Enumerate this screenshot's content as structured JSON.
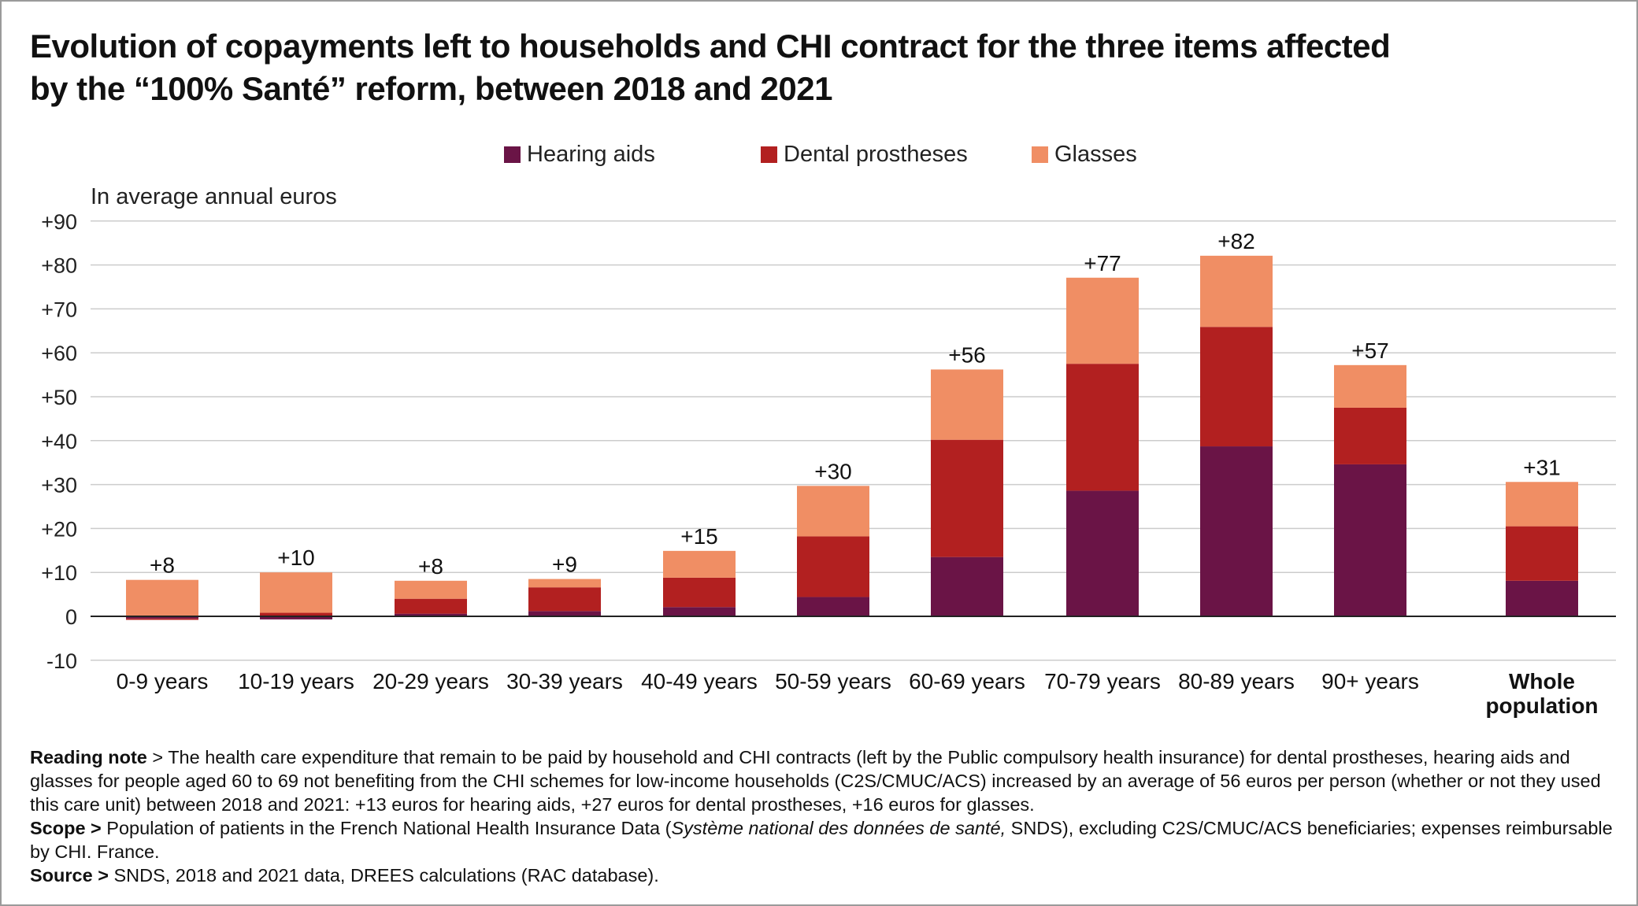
{
  "title_lines": [
    "Evolution of copayments left to households and CHI contract for the three items affected",
    "by the “100% Santé” reform, between 2018 and 2021"
  ],
  "unit_label": "In average annual euros",
  "colors": {
    "hearing_aids": "#6a1446",
    "dental_prostheses": "#b22020",
    "glasses": "#f08e64",
    "axis": "#222222",
    "grid": "#cccccc"
  },
  "notes": {
    "reading_label": "Reading note",
    "reading_text": " > The health care expenditure that remain to be paid by household and CHI contracts (left by the Public compulsory health insurance) for dental prostheses, hearing aids and glasses for people aged 60 to 69 not benefiting from the CHI schemes for low-income households (C2S/CMUC/ACS) increased by an average of 56 euros per person (whether or not they used this care unit) between 2018 and 2021: +13 euros for hearing aids, +27 euros for dental prostheses, +16 euros for glasses.",
    "scope_label": "Scope >",
    "scope_text_1": " Population of patients in the French National Health Insurance Data (",
    "scope_italic": "Système national des données de santé,",
    "scope_text_2": " SNDS), excluding C2S/CMUC/ACS beneficiaries; expenses reimbursable by CHI. France.",
    "source_label": "Source >",
    "source_text": " SNDS, 2018 and 2021 data, DREES calculations (RAC database)."
  },
  "chart_data": {
    "type": "bar",
    "stacked": true,
    "categories": [
      "0-9 years",
      "10-19 years",
      "20-29 years",
      "30-39 years",
      "40-49 years",
      "50-59 years",
      "60-69 years",
      "70-79 years",
      "80-89 years",
      "90+ years",
      "Whole population"
    ],
    "series": [
      {
        "name": "Hearing aids",
        "color": "#6a1446",
        "values": [
          -0.5,
          -0.7,
          0.6,
          1.2,
          2.1,
          4.4,
          13.5,
          28.6,
          38.7,
          34.6,
          8.1
        ]
      },
      {
        "name": "Dental prostheses",
        "color": "#b22020",
        "values": [
          -0.3,
          0.8,
          3.4,
          5.4,
          6.7,
          13.8,
          26.7,
          28.9,
          27.2,
          12.9,
          12.4
        ]
      },
      {
        "name": "Glasses",
        "color": "#f08e64",
        "values": [
          8.3,
          9.2,
          4.1,
          1.9,
          6.1,
          11.5,
          16.0,
          19.6,
          16.2,
          9.7,
          10.1
        ]
      }
    ],
    "totals_labels": [
      "+8",
      "+10",
      "+8",
      "+9",
      "+15",
      "+30",
      "+56",
      "+77",
      "+82",
      "+57",
      "+31"
    ],
    "ylim": [
      -10,
      90
    ],
    "yticks": [
      -10,
      0,
      10,
      20,
      30,
      40,
      50,
      60,
      70,
      80,
      90
    ],
    "ytick_labels": [
      "-10",
      "0",
      "+10",
      "+20",
      "+30",
      "+40",
      "+50",
      "+60",
      "+70",
      "+80",
      "+90"
    ],
    "ylabel": "In average annual euros",
    "grid": true,
    "legend_position": "top-center"
  }
}
